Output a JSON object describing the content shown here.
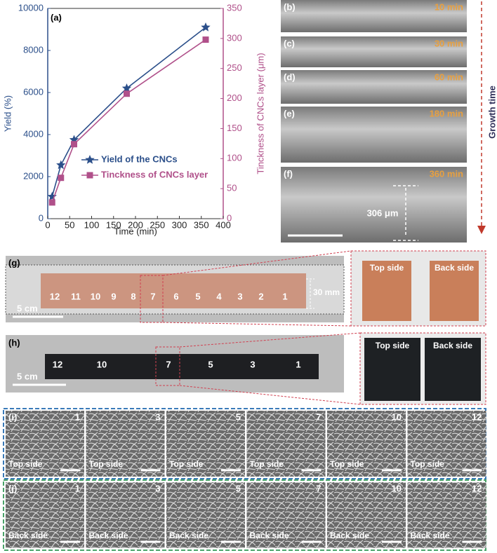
{
  "chart_data": {
    "type": "line",
    "label": "(a)",
    "xlabel": "Time (min)",
    "ylabel": "Yield (%)",
    "y2label": "Tinckness of CNCs layer (μm)",
    "x": [
      10,
      30,
      60,
      180,
      360
    ],
    "xlim": [
      0,
      400
    ],
    "xticks": [
      0,
      50,
      100,
      150,
      200,
      250,
      300,
      350,
      400
    ],
    "ylim": [
      0,
      10000
    ],
    "yticks": [
      0,
      2000,
      4000,
      6000,
      8000,
      10000
    ],
    "y2lim": [
      0,
      350
    ],
    "y2ticks": [
      0,
      50,
      100,
      150,
      200,
      250,
      300,
      350
    ],
    "series": [
      {
        "name": "Yield of the CNCs",
        "color": "#2b4f8a",
        "marker": "star",
        "values": [
          1050,
          2550,
          3750,
          6200,
          9100
        ]
      },
      {
        "name": "Tinckness of CNCs layer",
        "color": "#b0508a",
        "marker": "square",
        "axis": "y2",
        "values": [
          27,
          68,
          124,
          208,
          298
        ]
      }
    ]
  },
  "growth": {
    "panels": [
      {
        "label": "(b)",
        "time": "10 min"
      },
      {
        "label": "(c)",
        "time": "30 min"
      },
      {
        "label": "(d)",
        "time": "60 min"
      },
      {
        "label": "(e)",
        "time": "180 min"
      },
      {
        "label": "(f)",
        "time": "360 min"
      }
    ],
    "axis_title": "Growth time",
    "thickness": "306 μm"
  },
  "panel_g": {
    "label": "(g)",
    "numbers": [
      "12",
      "11",
      "10",
      "9",
      "8",
      "7",
      "6",
      "5",
      "4",
      "3",
      "2",
      "1"
    ],
    "scale": "5 cm",
    "width": "30 mm",
    "insets": [
      "Top side",
      "Back side"
    ]
  },
  "panel_h": {
    "label": "(h)",
    "numbers": [
      "12",
      "10",
      "7",
      "5",
      "3",
      "1"
    ],
    "scale": "5 cm",
    "insets": [
      "Top side",
      "Back side"
    ]
  },
  "panel_i": {
    "label": "(i)",
    "numbers": [
      "1",
      "3",
      "5",
      "7",
      "10",
      "12"
    ],
    "side": "Top side"
  },
  "panel_j": {
    "label": "(j)",
    "numbers": [
      "1",
      "3",
      "5",
      "7",
      "10",
      "12"
    ],
    "side": "Back side"
  }
}
